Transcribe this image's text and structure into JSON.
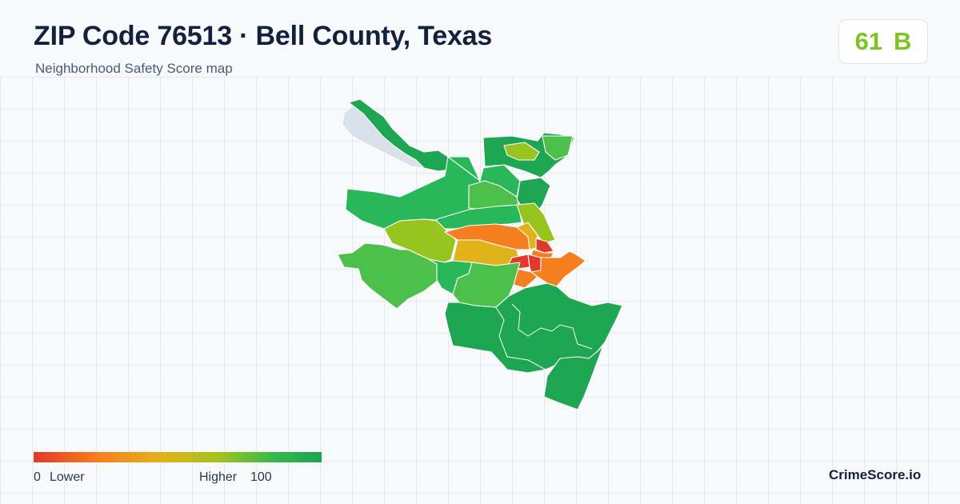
{
  "header": {
    "title": "ZIP Code 76513 · Bell County, Texas",
    "subtitle": "Neighborhood Safety Score map"
  },
  "score_badge": {
    "score": "61",
    "grade": "B",
    "color": "#7cc520"
  },
  "legend": {
    "min_value": "0",
    "min_label": "Lower",
    "max_label": "Higher",
    "max_value": "100",
    "colors": [
      "#e03a2a",
      "#f57f1e",
      "#e1b31b",
      "#a0c31e",
      "#3cb94c",
      "#1aa552"
    ]
  },
  "brand": "CrimeScore.io",
  "map": {
    "water_color": "#d9e1ea",
    "region_colors": {
      "low": "#e03a2a",
      "orange": "#f57f1e",
      "amber": "#e1b31b",
      "lime": "#97c41e",
      "green": "#4cc04a",
      "bright_green": "#28b85a",
      "dark_green": "#1fa653"
    }
  }
}
